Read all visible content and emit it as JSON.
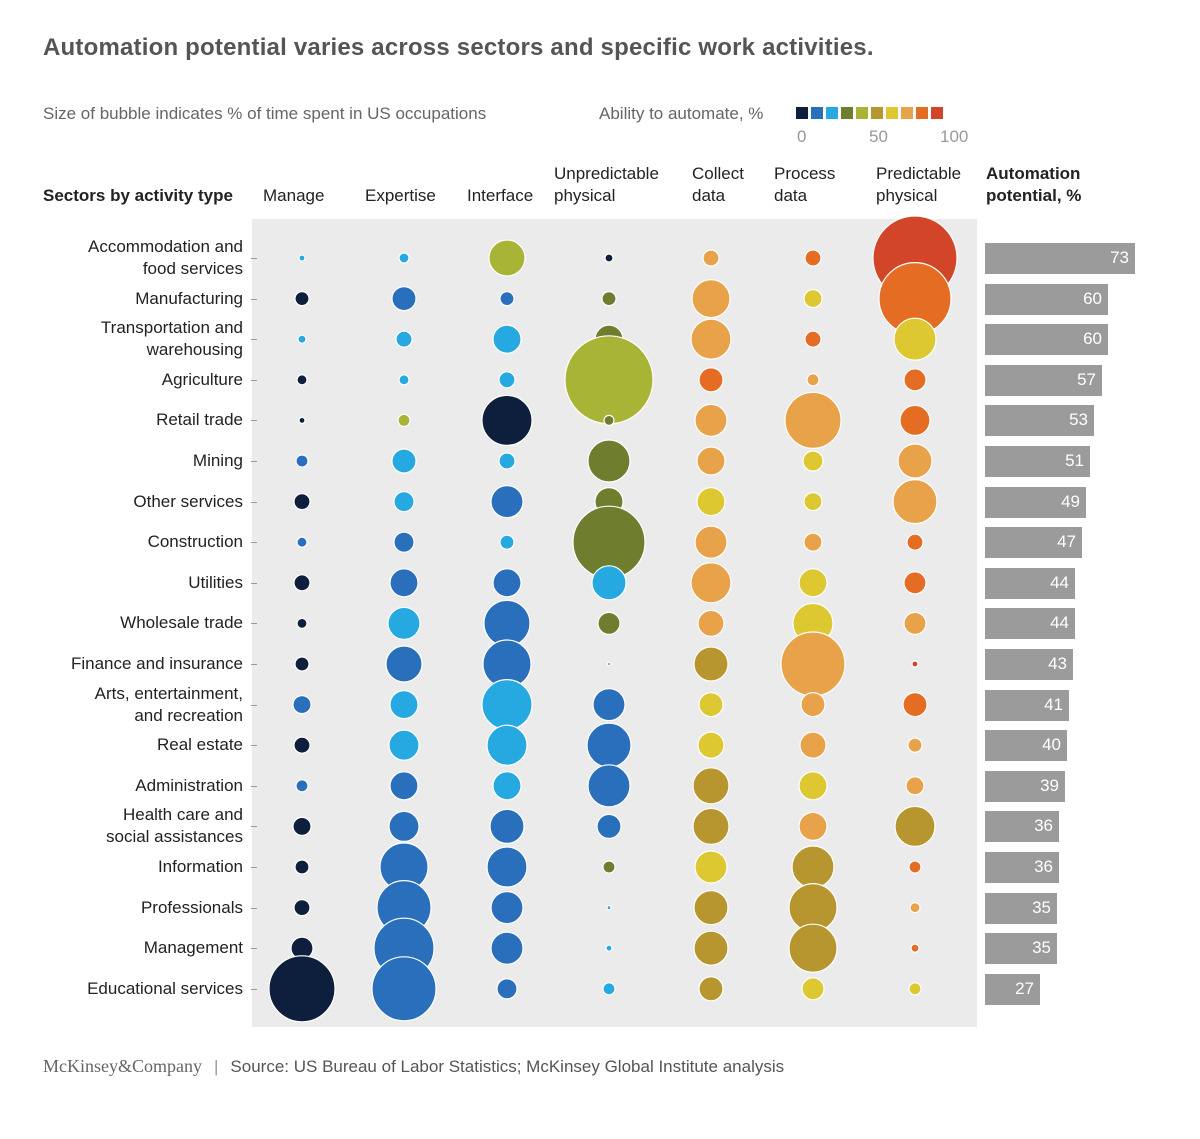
{
  "title": "Automation potential varies across sectors and specific work activities.",
  "subtitle": "Size of bubble indicates % of time spent in US occupations",
  "legend": {
    "title": "Ability to automate, %",
    "colors": [
      "#0d1f3c",
      "#2a6fbb",
      "#25a9e0",
      "#6f7d2e",
      "#a8b435",
      "#b8962f",
      "#ddc832",
      "#e8a24a",
      "#e46d23",
      "#d24528"
    ],
    "ticks": [
      "0",
      "50",
      "100"
    ]
  },
  "headers": {
    "row": "Sectors by activity type",
    "columns": [
      {
        "line1": "",
        "line2": "Manage"
      },
      {
        "line1": "",
        "line2": "Expertise"
      },
      {
        "line1": "",
        "line2": "Interface"
      },
      {
        "line1": "Unpredictable",
        "line2": "physical"
      },
      {
        "line1": "Collect",
        "line2": "data"
      },
      {
        "line1": "Process",
        "line2": "data"
      },
      {
        "line1": "Predictable",
        "line2": "physical"
      }
    ],
    "potential": {
      "line1": "Automation",
      "line2": "potential, %"
    }
  },
  "rows": [
    {
      "line1": "Accommodation and",
      "line2": "food services"
    },
    {
      "line1": "Manufacturing",
      "line2": ""
    },
    {
      "line1": "Transportation and",
      "line2": "warehousing"
    },
    {
      "line1": "Agriculture",
      "line2": ""
    },
    {
      "line1": "Retail trade",
      "line2": ""
    },
    {
      "line1": "Mining",
      "line2": ""
    },
    {
      "line1": "Other services",
      "line2": ""
    },
    {
      "line1": "Construction",
      "line2": ""
    },
    {
      "line1": "Utilities",
      "line2": ""
    },
    {
      "line1": "Wholesale trade",
      "line2": ""
    },
    {
      "line1": "Finance and insurance",
      "line2": ""
    },
    {
      "line1": "Arts, entertainment,",
      "line2": "and recreation"
    },
    {
      "line1": "Real estate",
      "line2": ""
    },
    {
      "line1": "Administration",
      "line2": ""
    },
    {
      "line1": "Health care and",
      "line2": "social assistances"
    },
    {
      "line1": "Information",
      "line2": ""
    },
    {
      "line1": "Professionals",
      "line2": ""
    },
    {
      "line1": "Management",
      "line2": ""
    },
    {
      "line1": "Educational services",
      "line2": ""
    }
  ],
  "chart_data": {
    "type": "bubble-matrix",
    "bubble_size_meaning": "% of time spent in US occupations (relative scale)",
    "bubble_color_meaning": "Ability to automate, % (color index 0 = low, 9 = high)",
    "sizes": [
      [
        3,
        5,
        18,
        4,
        8,
        8,
        42
      ],
      [
        7,
        12,
        7,
        7,
        19,
        9,
        36
      ],
      [
        4,
        8,
        14,
        14,
        20,
        8,
        21
      ],
      [
        5,
        5,
        8,
        44,
        12,
        6,
        11
      ],
      [
        3,
        6,
        25,
        5,
        16,
        28,
        15
      ],
      [
        6,
        12,
        8,
        21,
        14,
        10,
        17
      ],
      [
        8,
        10,
        16,
        14,
        14,
        9,
        22
      ],
      [
        5,
        10,
        7,
        36,
        16,
        9,
        8
      ],
      [
        8,
        14,
        14,
        17,
        20,
        14,
        11
      ],
      [
        5,
        16,
        23,
        11,
        13,
        20,
        11
      ],
      [
        7,
        18,
        24,
        1,
        17,
        32,
        3
      ],
      [
        9,
        14,
        25,
        16,
        12,
        12,
        12
      ],
      [
        8,
        15,
        20,
        22,
        13,
        13,
        7
      ],
      [
        6,
        14,
        14,
        21,
        18,
        14,
        9
      ],
      [
        9,
        15,
        17,
        12,
        18,
        14,
        20
      ],
      [
        7,
        24,
        20,
        6,
        16,
        21,
        6
      ],
      [
        8,
        27,
        16,
        2,
        17,
        24,
        5
      ],
      [
        11,
        30,
        16,
        3,
        17,
        24,
        4
      ],
      [
        33,
        32,
        10,
        6,
        12,
        11,
        6
      ]
    ],
    "colors": [
      [
        2,
        2,
        4,
        0,
        7,
        8,
        9
      ],
      [
        0,
        1,
        1,
        3,
        7,
        6,
        8
      ],
      [
        2,
        2,
        2,
        3,
        7,
        8,
        6
      ],
      [
        0,
        2,
        2,
        4,
        8,
        7,
        8
      ],
      [
        0,
        4,
        0,
        3,
        7,
        7,
        8
      ],
      [
        1,
        2,
        2,
        3,
        7,
        6,
        7
      ],
      [
        0,
        2,
        1,
        3,
        6,
        6,
        7
      ],
      [
        1,
        1,
        2,
        3,
        7,
        7,
        8
      ],
      [
        0,
        1,
        1,
        2,
        7,
        6,
        8
      ],
      [
        0,
        2,
        1,
        3,
        7,
        6,
        7
      ],
      [
        0,
        1,
        1,
        1,
        5,
        7,
        9
      ],
      [
        1,
        2,
        2,
        1,
        6,
        7,
        8
      ],
      [
        0,
        2,
        2,
        1,
        6,
        7,
        7
      ],
      [
        1,
        1,
        2,
        1,
        5,
        6,
        7
      ],
      [
        0,
        1,
        1,
        1,
        5,
        7,
        5
      ],
      [
        0,
        1,
        1,
        3,
        6,
        5,
        8
      ],
      [
        0,
        1,
        1,
        2,
        5,
        5,
        7
      ],
      [
        0,
        1,
        1,
        2,
        5,
        5,
        8
      ],
      [
        0,
        1,
        1,
        2,
        5,
        6,
        6
      ]
    ],
    "automation_potential": [
      73,
      60,
      60,
      57,
      53,
      51,
      49,
      47,
      44,
      44,
      43,
      41,
      40,
      39,
      36,
      36,
      35,
      35,
      27
    ]
  },
  "footer": {
    "logo": "McKinsey&Company",
    "source": "Source: US Bureau of Labor Statistics; McKinsey Global Institute analysis"
  }
}
